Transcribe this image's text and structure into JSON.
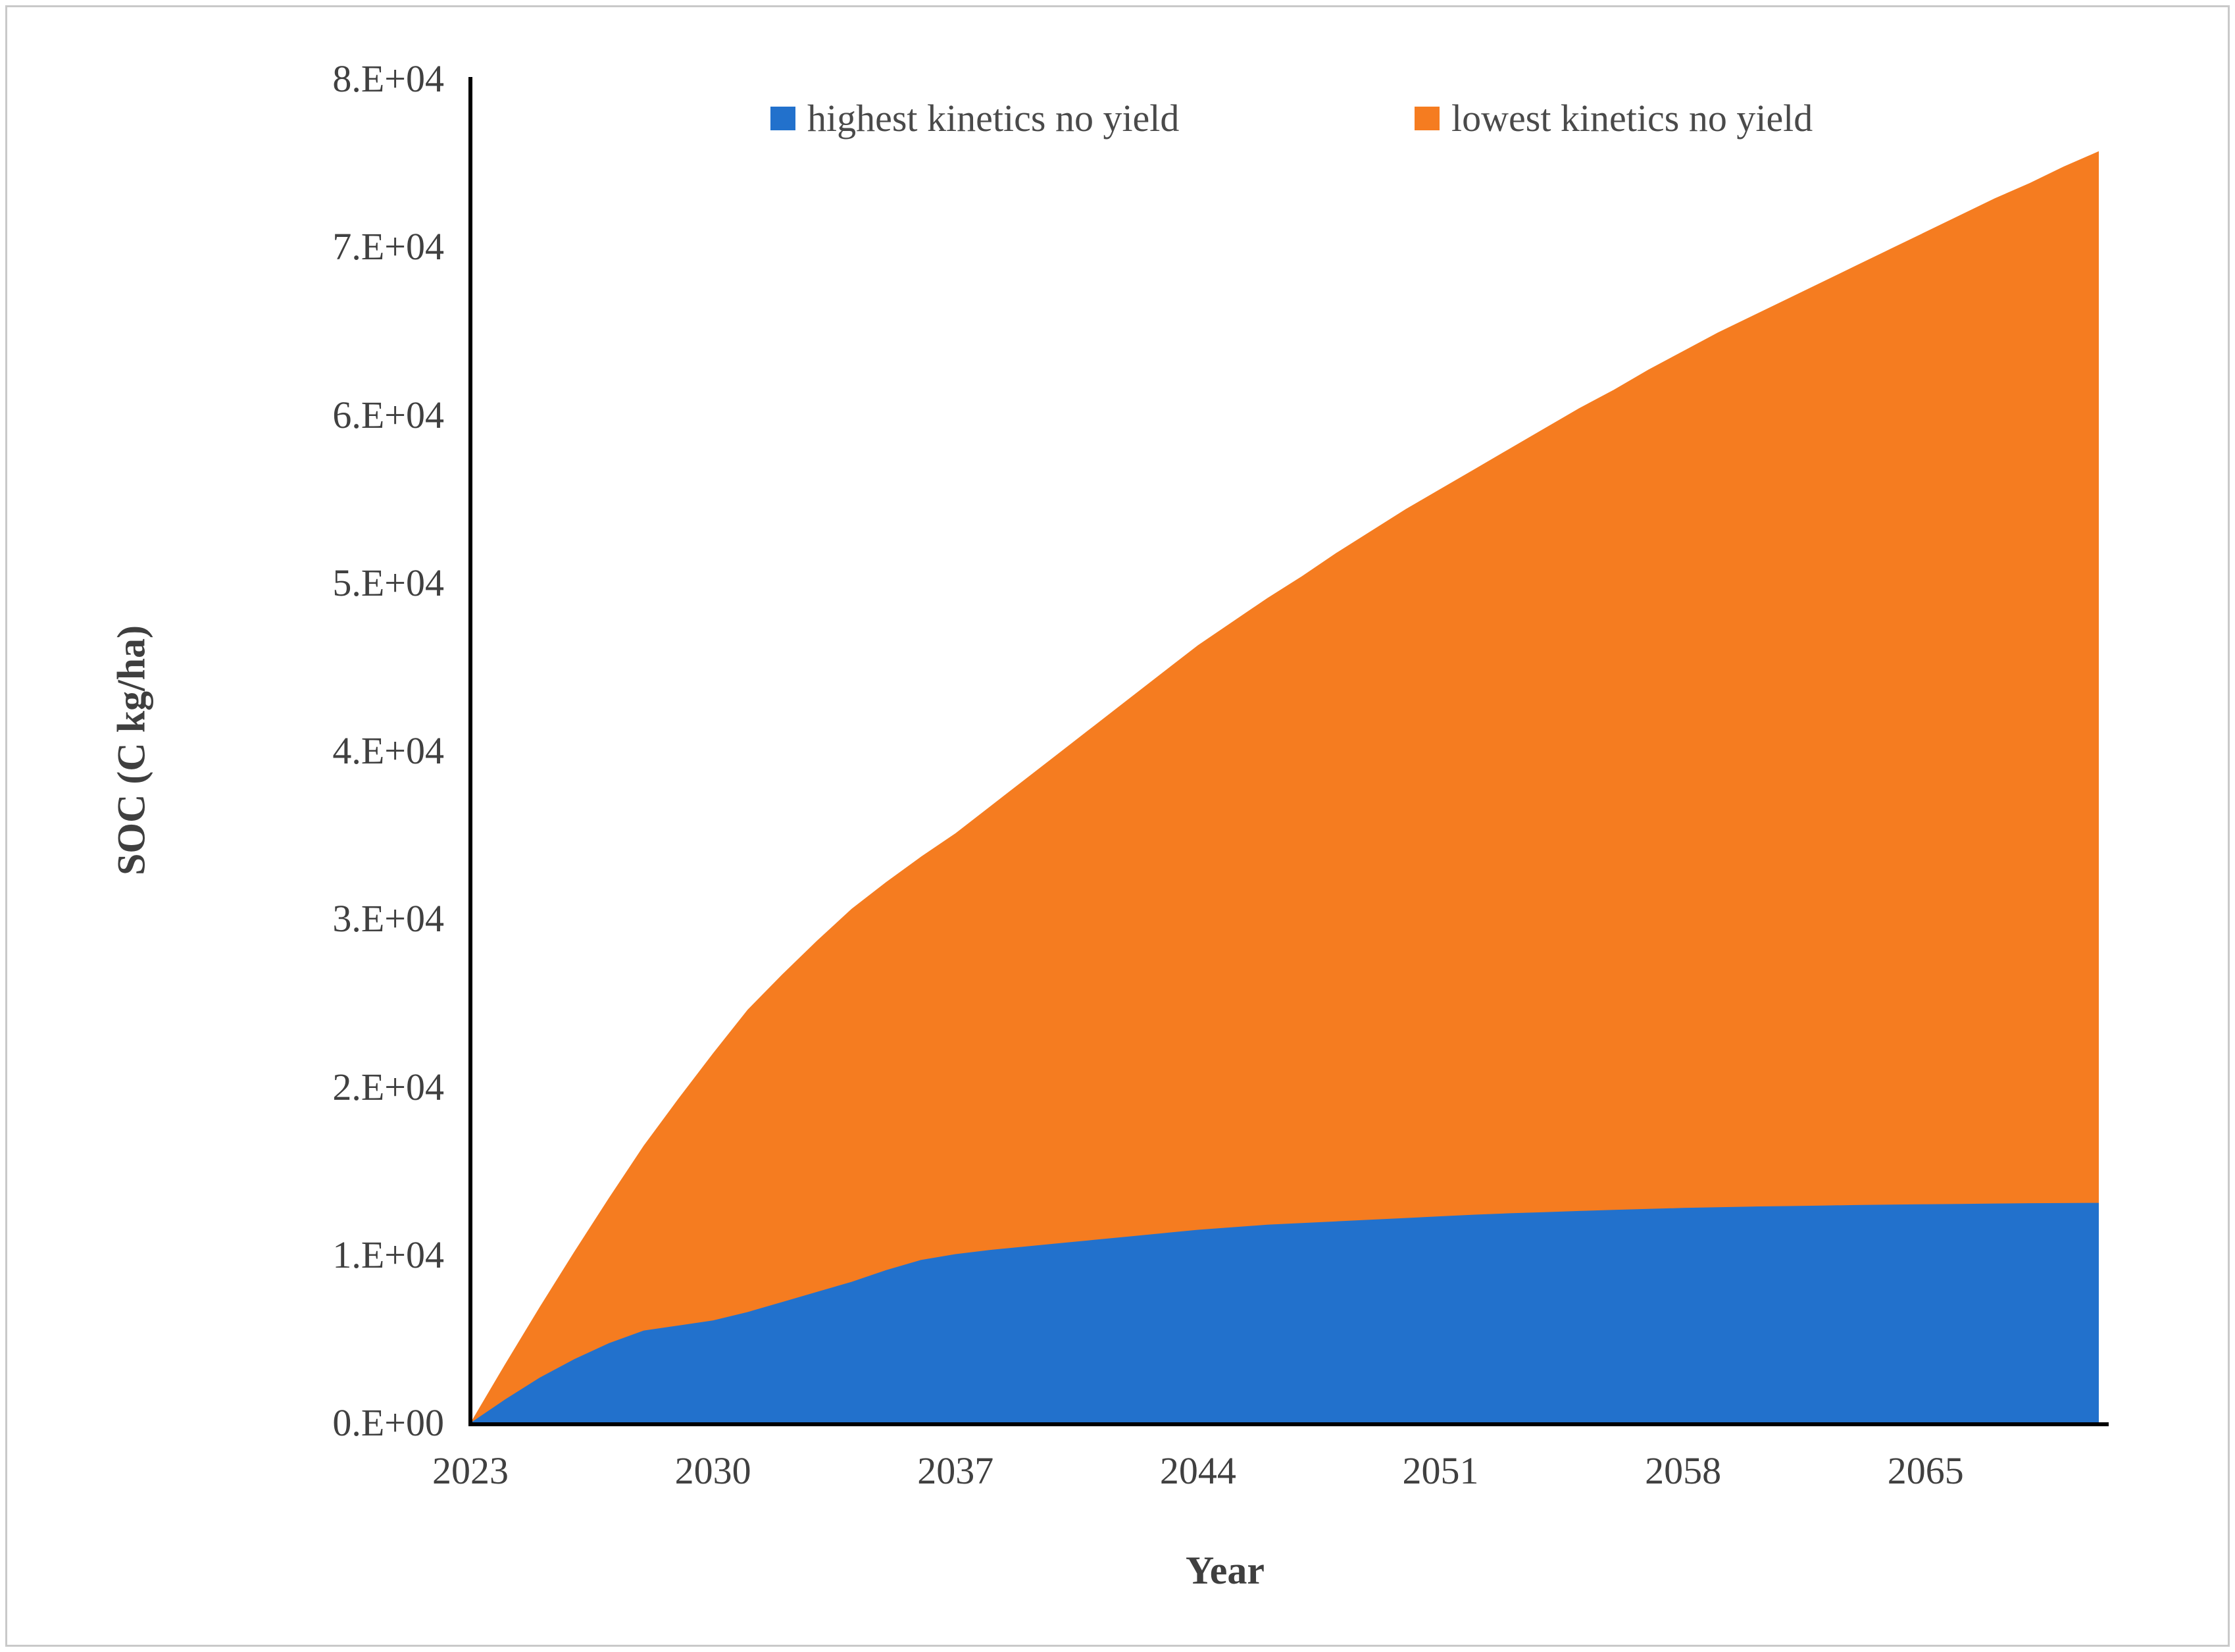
{
  "figure": {
    "background": "#ffffff",
    "border_color": "#c9c9c9",
    "tick_text_color": "#404040",
    "axis_line_color": "#000000"
  },
  "chart_data": {
    "type": "area",
    "mode": "overlay",
    "draw_order_note": "orange area drawn behind, blue area drawn in front; both start at 0 in 2023",
    "title": "",
    "xlabel": "Year",
    "ylabel": "SOC (C kg/ha)",
    "xlim": [
      2023,
      2070
    ],
    "ylim": [
      0,
      80000
    ],
    "grid": false,
    "legend_position": "top-inside",
    "x_tick_years": [
      2023,
      2030,
      2037,
      2044,
      2051,
      2058,
      2065
    ],
    "x_tick_labels": [
      "2023",
      "2030",
      "2037",
      "2044",
      "2051",
      "2058",
      "2065"
    ],
    "y_tick_values": [
      0,
      10000,
      20000,
      30000,
      40000,
      50000,
      60000,
      70000,
      80000
    ],
    "y_tick_labels": [
      "0.E+00",
      "1.E+04",
      "2.E+04",
      "3.E+04",
      "4.E+04",
      "5.E+04",
      "6.E+04",
      "7.E+04",
      "8.E+04"
    ],
    "x": [
      2023,
      2024,
      2025,
      2026,
      2027,
      2028,
      2029,
      2030,
      2031,
      2032,
      2033,
      2034,
      2035,
      2036,
      2037,
      2038,
      2039,
      2040,
      2041,
      2042,
      2043,
      2044,
      2045,
      2046,
      2047,
      2048,
      2049,
      2050,
      2051,
      2052,
      2053,
      2054,
      2055,
      2056,
      2057,
      2058,
      2059,
      2060,
      2061,
      2062,
      2063,
      2064,
      2065,
      2066,
      2067,
      2068,
      2069,
      2070
    ],
    "series": [
      {
        "name": "highest kinetics no yield",
        "color": "#2271cc",
        "values": [
          0,
          1400,
          2700,
          3800,
          4750,
          5500,
          5800,
          6100,
          6600,
          7200,
          7800,
          8400,
          9100,
          9700,
          10050,
          10300,
          10500,
          10700,
          10900,
          11100,
          11300,
          11500,
          11650,
          11800,
          11900,
          12000,
          12100,
          12200,
          12300,
          12400,
          12480,
          12550,
          12620,
          12680,
          12740,
          12800,
          12840,
          12880,
          12910,
          12940,
          12970,
          13000,
          13020,
          13040,
          13060,
          13080,
          13090,
          13100
        ]
      },
      {
        "name": "lowest kinetics no yield",
        "color": "#f57c20",
        "values": [
          0,
          3500,
          6900,
          10200,
          13400,
          16500,
          19300,
          22000,
          24600,
          26700,
          28700,
          30600,
          32200,
          33700,
          35100,
          36700,
          38300,
          39900,
          41500,
          43100,
          44700,
          46300,
          47700,
          49100,
          50400,
          51800,
          53100,
          54400,
          55600,
          56800,
          58000,
          59200,
          60400,
          61500,
          62700,
          63800,
          64900,
          65900,
          66900,
          67900,
          68900,
          69900,
          70900,
          71900,
          72900,
          73800,
          74800,
          75700
        ]
      }
    ]
  }
}
